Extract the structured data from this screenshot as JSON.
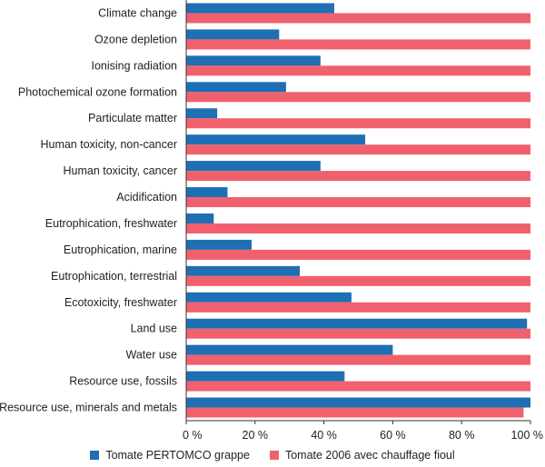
{
  "chart_data": {
    "type": "bar",
    "orientation": "horizontal",
    "categories": [
      "Climate change",
      "Ozone depletion",
      "Ionising radiation",
      "Photochemical ozone formation",
      "Particulate matter",
      "Human toxicity, non-cancer",
      "Human toxicity, cancer",
      "Acidification",
      "Eutrophication, freshwater",
      "Eutrophication, marine",
      "Eutrophication, terrestrial",
      "Ecotoxicity, freshwater",
      "Land use",
      "Water use",
      "Resource use, fossils",
      "Resource use, minerals and metals"
    ],
    "series": [
      {
        "name": "Tomate PERTOMCO grappe",
        "color": "#1f6fb5",
        "values": [
          43,
          27,
          39,
          29,
          9,
          52,
          39,
          12,
          8,
          19,
          33,
          48,
          99,
          60,
          46,
          100
        ]
      },
      {
        "name": "Tomate 2006 avec chauffage fioul",
        "color": "#f0616d",
        "values": [
          100,
          100,
          100,
          100,
          100,
          100,
          100,
          100,
          100,
          100,
          100,
          100,
          100,
          100,
          100,
          98
        ]
      }
    ],
    "xlim": [
      0,
      100
    ],
    "xticks": [
      0,
      20,
      40,
      60,
      80,
      100
    ],
    "xtick_labels": [
      "0 %",
      "20 %",
      "40 %",
      "60 %",
      "80 %",
      "100 %"
    ],
    "title": "",
    "xlabel": "",
    "ylabel": "",
    "legend_position": "bottom",
    "axis_color": "#333333"
  }
}
